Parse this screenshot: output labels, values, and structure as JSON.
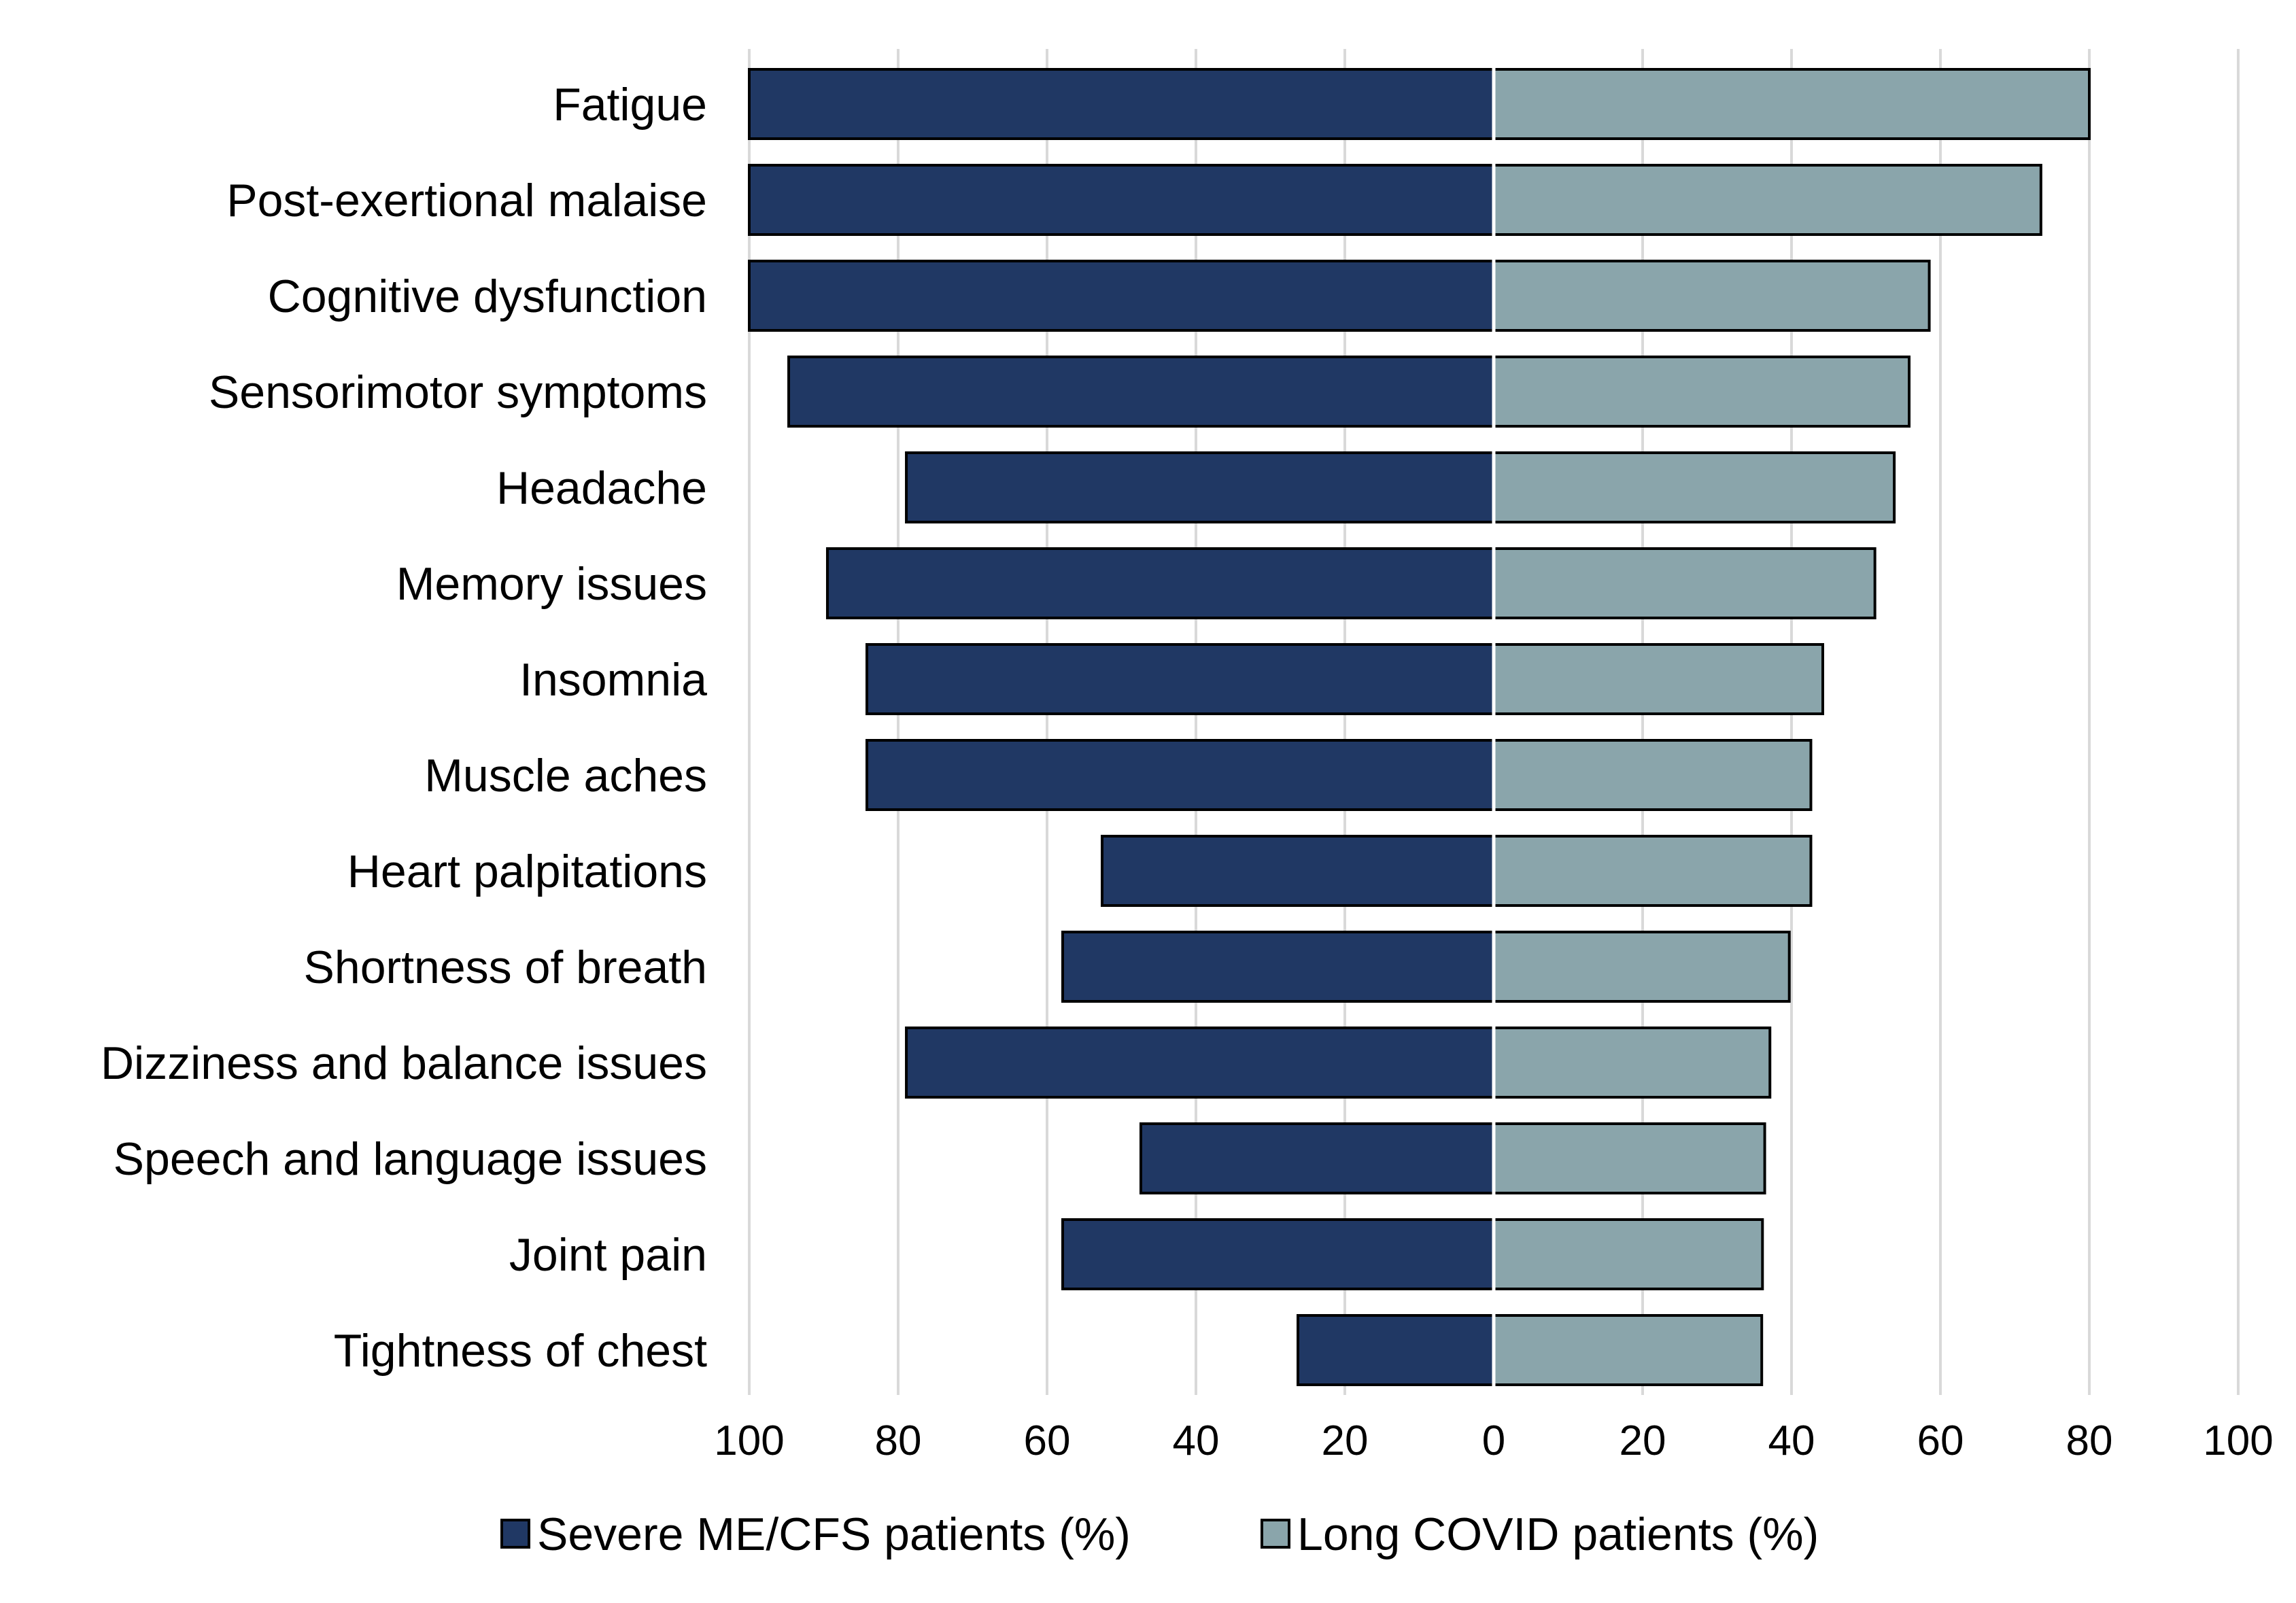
{
  "chart_data": {
    "type": "bar",
    "orientation": "horizontal-butterfly",
    "categories": [
      "Fatigue",
      "Post-exertional malaise",
      "Cognitive dysfunction",
      "Sensorimotor symptoms",
      "Headache",
      "Memory issues",
      "Insomnia",
      "Muscle aches",
      "Heart palpitations",
      "Shortness of breath",
      "Dizziness and balance issues",
      "Speech and language issues",
      "Joint pain",
      "Tightness of chest"
    ],
    "series": [
      {
        "name": "Severe ME/CFS patients (%)",
        "side": "left",
        "color": "#203864",
        "values": [
          100,
          100,
          100,
          94.7,
          78.9,
          89.5,
          84.2,
          84.2,
          52.6,
          57.9,
          78.9,
          47.4,
          57.9,
          26.3
        ]
      },
      {
        "name": "Long COVID patients (%)",
        "side": "right",
        "color": "#8aa5ab",
        "values": [
          80,
          73.5,
          58.5,
          55.8,
          53.8,
          51.2,
          44.2,
          42.6,
          42.6,
          39.7,
          37.1,
          36.4,
          36.1,
          36.0
        ]
      }
    ],
    "x_ticks": [
      "100",
      "80",
      "60",
      "40",
      "20",
      "0",
      "20",
      "40",
      "60",
      "80",
      "100"
    ],
    "xlim": [
      -100,
      100
    ],
    "grid": true,
    "legend_position": "bottom",
    "title": "",
    "xlabel": "",
    "ylabel": ""
  },
  "colors": {
    "gridline": "#d9d9d9",
    "bar_outline": "#000000",
    "center_line": "#ffffff"
  }
}
